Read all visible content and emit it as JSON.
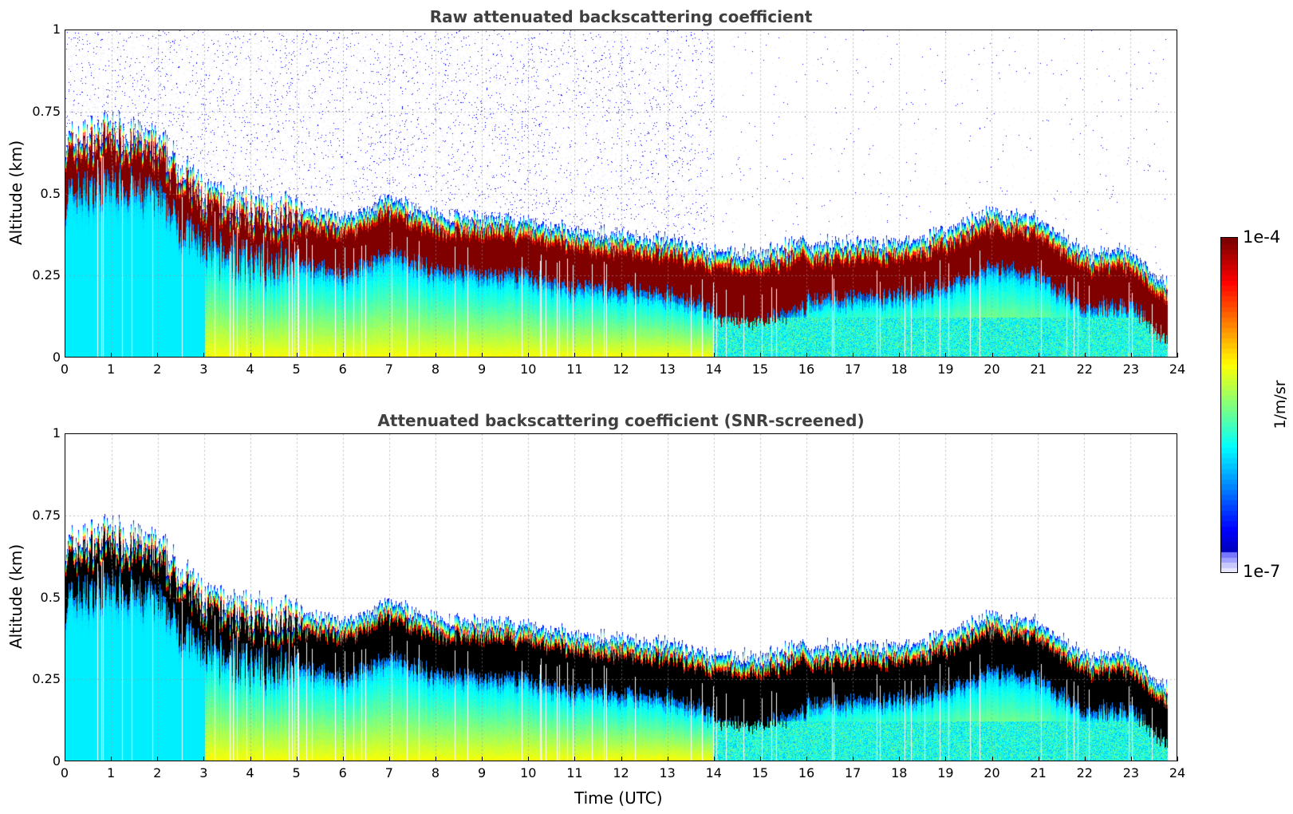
{
  "chart_data": [
    {
      "type": "heatmap",
      "title": "Raw attenuated backscattering coefficient",
      "xlabel": "",
      "ylabel": "Altitude (km)",
      "xlim": [
        0,
        24
      ],
      "ylim": [
        0,
        1
      ],
      "xticks": [
        "0",
        "1",
        "2",
        "3",
        "4",
        "5",
        "6",
        "7",
        "8",
        "9",
        "10",
        "11",
        "12",
        "13",
        "14",
        "15",
        "16",
        "17",
        "18",
        "19",
        "20",
        "21",
        "22",
        "23",
        "24"
      ],
      "yticks": [
        "0",
        "0.25",
        "0.5",
        "0.75",
        "1"
      ],
      "grid": true,
      "data_end_hour": 23.8,
      "layer_center_km": {
        "hours": [
          0,
          1,
          2,
          3,
          4,
          5,
          6,
          7,
          8,
          9,
          10,
          11,
          12,
          13,
          14,
          15,
          16,
          17,
          18,
          19,
          20,
          21,
          22,
          23,
          23.8
        ],
        "values": [
          0.56,
          0.6,
          0.55,
          0.4,
          0.36,
          0.35,
          0.32,
          0.38,
          0.33,
          0.32,
          0.31,
          0.28,
          0.27,
          0.26,
          0.21,
          0.19,
          0.24,
          0.25,
          0.25,
          0.28,
          0.34,
          0.32,
          0.22,
          0.22,
          0.12
        ]
      },
      "noise_above_layer": true
    },
    {
      "type": "heatmap",
      "title": "Attenuated backscattering coefficient (SNR-screened)",
      "xlabel": "Time (UTC)",
      "ylabel": "Altitude (km)",
      "xlim": [
        0,
        24
      ],
      "ylim": [
        0,
        1
      ],
      "xticks": [
        "0",
        "1",
        "2",
        "3",
        "4",
        "5",
        "6",
        "7",
        "8",
        "9",
        "10",
        "11",
        "12",
        "13",
        "14",
        "15",
        "16",
        "17",
        "18",
        "19",
        "20",
        "21",
        "22",
        "23",
        "24"
      ],
      "yticks": [
        "0",
        "0.25",
        "0.5",
        "0.75",
        "1"
      ],
      "grid": true,
      "saturated_color": "#000000",
      "noise_above_layer": false
    }
  ],
  "colorbar": {
    "label": "1/m/sr",
    "max_label": "1e-4",
    "min_label": "1e-7",
    "scale": "log",
    "colormap": "jet"
  }
}
